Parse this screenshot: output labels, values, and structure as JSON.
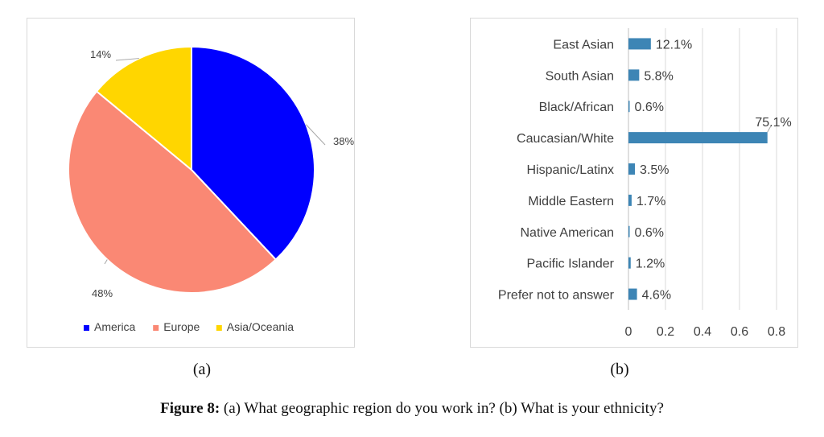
{
  "chart_data": [
    {
      "type": "pie",
      "slices": [
        {
          "label": "America",
          "value": 38,
          "data_label": "38%",
          "color": "#0000ff"
        },
        {
          "label": "Europe",
          "value": 48,
          "data_label": "48%",
          "color": "#fa8874"
        },
        {
          "label": "Asia/Oceania",
          "value": 14,
          "data_label": "14%",
          "color": "#ffd600"
        }
      ],
      "legend_position": "bottom"
    },
    {
      "type": "bar",
      "orientation": "horizontal",
      "categories": [
        "East Asian",
        "South Asian",
        "Black/African",
        "Caucasian/White",
        "Hispanic/Latinx",
        "Middle Eastern",
        "Native American",
        "Pacific Islander",
        "Prefer not to answer"
      ],
      "values": [
        0.121,
        0.058,
        0.006,
        0.751,
        0.035,
        0.017,
        0.006,
        0.012,
        0.046
      ],
      "data_labels": [
        "12.1%",
        "5.8%",
        "0.6%",
        "75.1%",
        "3.5%",
        "1.7%",
        "0.6%",
        "1.2%",
        "4.6%"
      ],
      "xlim": [
        0,
        0.8
      ],
      "xticks": [
        "0",
        "0.2",
        "0.4",
        "0.6",
        "0.8"
      ],
      "grid": true,
      "color": "#3d85b5"
    }
  ],
  "subfigure_labels": {
    "a": "(a)",
    "b": "(b)"
  },
  "caption": {
    "prefix": "Figure 8:",
    "text": "(a) What geographic region do you work in? (b) What is your ethnicity?"
  }
}
